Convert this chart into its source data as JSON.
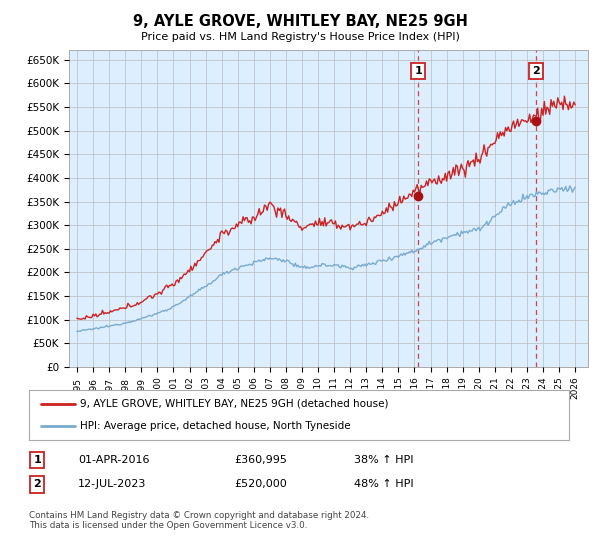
{
  "title": "9, AYLE GROVE, WHITLEY BAY, NE25 9GH",
  "subtitle": "Price paid vs. HM Land Registry's House Price Index (HPI)",
  "ylabel_ticks": [
    0,
    50000,
    100000,
    150000,
    200000,
    250000,
    300000,
    350000,
    400000,
    450000,
    500000,
    550000,
    600000,
    650000
  ],
  "ylim": [
    0,
    670000
  ],
  "xlim_start": 1994.5,
  "xlim_end": 2026.8,
  "sale1_x": 2016.25,
  "sale1_y": 360995,
  "sale2_x": 2023.54,
  "sale2_y": 520000,
  "red_color": "#cc2222",
  "blue_color": "#7aabcf",
  "plot_bg_color": "#ddeeff",
  "legend_label_red": "9, AYLE GROVE, WHITLEY BAY, NE25 9GH (detached house)",
  "legend_label_blue": "HPI: Average price, detached house, North Tyneside",
  "table_row1": [
    "1",
    "01-APR-2016",
    "£360,995",
    "38% ↑ HPI"
  ],
  "table_row2": [
    "2",
    "12-JUL-2023",
    "£520,000",
    "48% ↑ HPI"
  ],
  "footer": "Contains HM Land Registry data © Crown copyright and database right 2024.\nThis data is licensed under the Open Government Licence v3.0.",
  "background_color": "#ffffff",
  "grid_color": "#bbbbbb",
  "hpi_ctrl_x": [
    1995,
    1996,
    1997,
    1998,
    1999,
    2000,
    2001,
    2002,
    2003,
    2004,
    2005,
    2006,
    2007,
    2008,
    2009,
    2010,
    2011,
    2012,
    2013,
    2014,
    2015,
    2016,
    2017,
    2018,
    2019,
    2020,
    2021,
    2022,
    2023,
    2024,
    2025,
    2026
  ],
  "hpi_ctrl_y": [
    75000,
    80000,
    86000,
    93000,
    102000,
    113000,
    127000,
    148000,
    170000,
    195000,
    210000,
    220000,
    230000,
    225000,
    208000,
    215000,
    215000,
    210000,
    215000,
    225000,
    235000,
    245000,
    262000,
    275000,
    285000,
    290000,
    318000,
    345000,
    360000,
    368000,
    375000,
    380000
  ],
  "red_ctrl_x": [
    1995,
    1996,
    1997,
    1998,
    1999,
    2000,
    2001,
    2002,
    2003,
    2004,
    2005,
    2006,
    2007,
    2008,
    2009,
    2010,
    2011,
    2012,
    2013,
    2014,
    2015,
    2016,
    2017,
    2018,
    2019,
    2020,
    2021,
    2022,
    2023,
    2024,
    2025,
    2026
  ],
  "red_ctrl_y": [
    100000,
    107000,
    115000,
    125000,
    138000,
    155000,
    175000,
    205000,
    240000,
    280000,
    300000,
    315000,
    345000,
    320000,
    295000,
    305000,
    300000,
    298000,
    305000,
    325000,
    350000,
    370000,
    390000,
    405000,
    420000,
    440000,
    480000,
    510000,
    520000,
    540000,
    560000,
    555000
  ],
  "dashed_color": "#cc4444"
}
